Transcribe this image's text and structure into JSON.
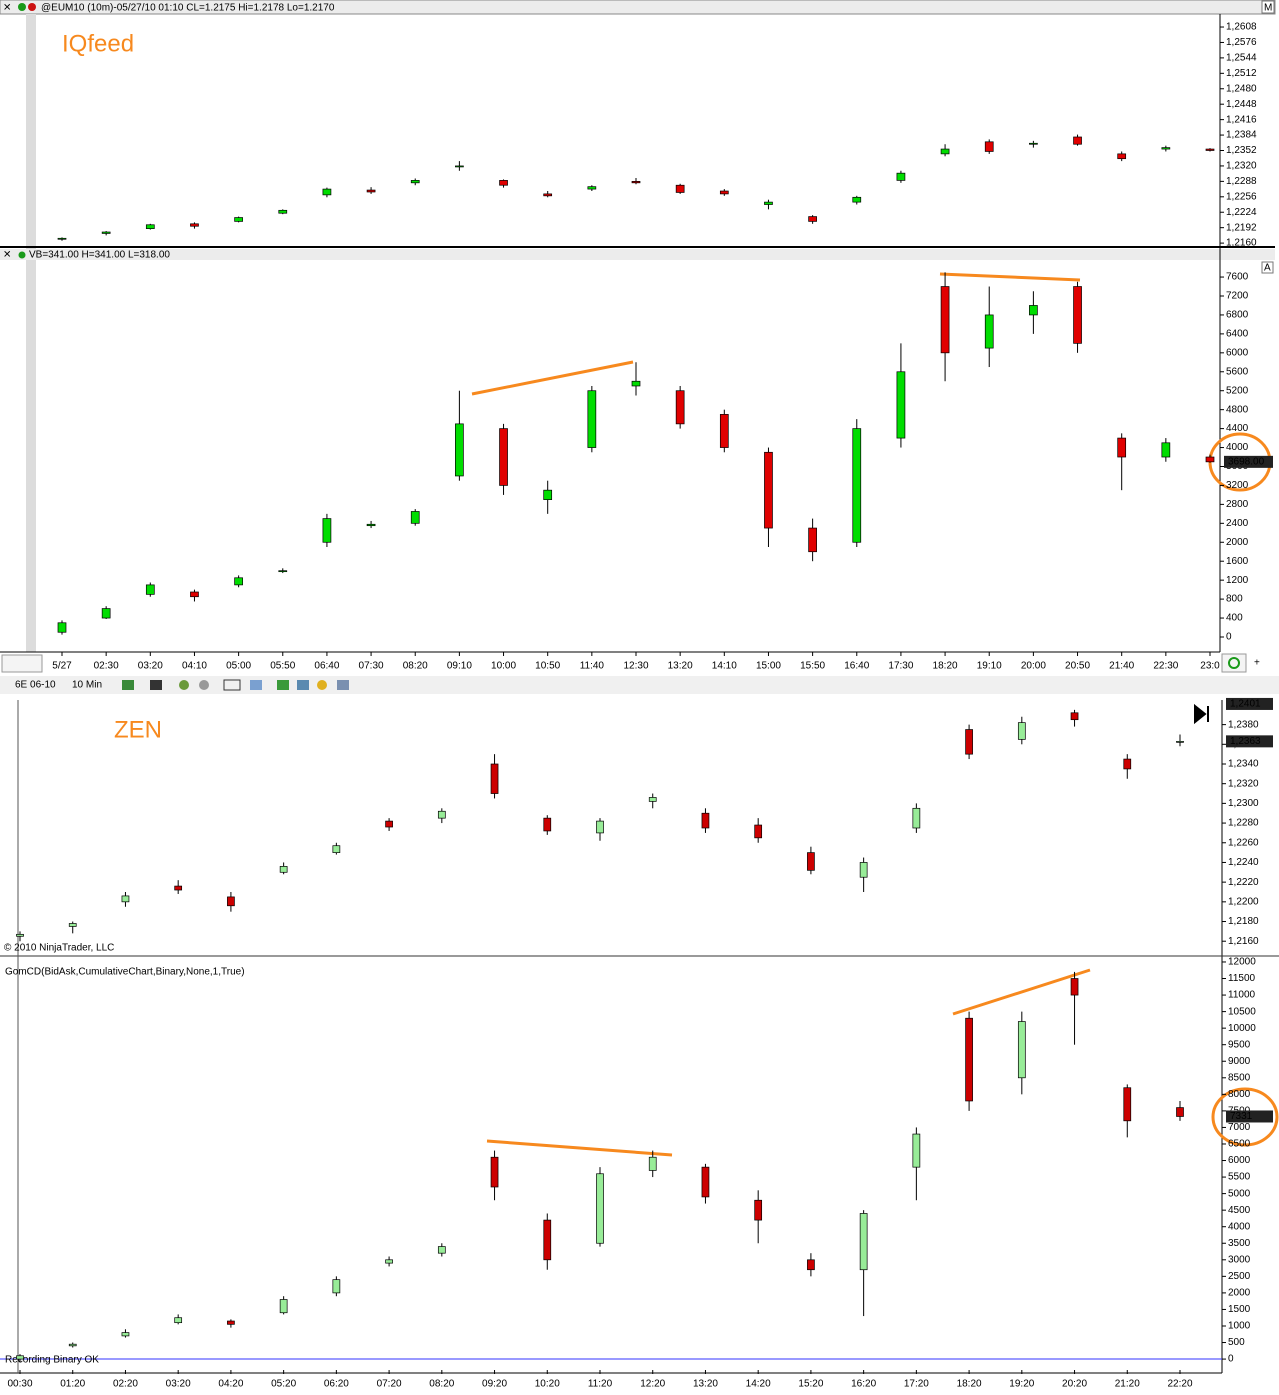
{
  "chart_data": [
    {
      "type": "candlestick",
      "title": "@EUM10 (10m)-05/27/10 01:10 CL=1.2175 Hi=1.2178 Lo=1.2170",
      "label": "IQfeed",
      "up_color": "#00dd00",
      "down_color": "#e00000",
      "open": [
        1.2168,
        1.218,
        1.219,
        1.22,
        1.2205,
        1.2222,
        1.226,
        1.227,
        1.2285,
        1.2318,
        1.229,
        1.2262,
        1.2272,
        1.2288,
        1.228,
        1.2268,
        1.224,
        1.2215,
        1.2245,
        1.229,
        1.2345,
        1.237,
        1.2365,
        1.238,
        1.2345,
        1.2355,
        1.2355
      ],
      "high": [
        1.2172,
        1.2185,
        1.22,
        1.2203,
        1.2215,
        1.223,
        1.2275,
        1.2276,
        1.2294,
        1.233,
        1.2292,
        1.2268,
        1.228,
        1.2295,
        1.2283,
        1.2272,
        1.225,
        1.2218,
        1.2258,
        1.231,
        1.2365,
        1.2375,
        1.2372,
        1.2385,
        1.235,
        1.2362,
        1.2357
      ],
      "low": [
        1.2165,
        1.2176,
        1.2188,
        1.219,
        1.2203,
        1.222,
        1.2255,
        1.2262,
        1.228,
        1.231,
        1.2275,
        1.2255,
        1.2268,
        1.2282,
        1.2262,
        1.2258,
        1.223,
        1.22,
        1.224,
        1.2285,
        1.234,
        1.2345,
        1.2358,
        1.2362,
        1.233,
        1.235,
        1.235
      ],
      "close": [
        1.217,
        1.2183,
        1.2198,
        1.2195,
        1.2213,
        1.2228,
        1.2272,
        1.2266,
        1.229,
        1.232,
        1.228,
        1.2258,
        1.2277,
        1.2285,
        1.2265,
        1.2262,
        1.2245,
        1.2205,
        1.2255,
        1.2305,
        1.2355,
        1.235,
        1.2367,
        1.2365,
        1.2335,
        1.2358,
        1.2352
      ],
      "ylim": [
        1.2154,
        1.2635
      ],
      "yticks": [
        {
          "value": 1.216,
          "label": "1,2160"
        },
        {
          "value": 1.2192,
          "label": "1,2192"
        },
        {
          "value": 1.2224,
          "label": "1,2224"
        },
        {
          "value": 1.2256,
          "label": "1,2256"
        },
        {
          "value": 1.2288,
          "label": "1,2288"
        },
        {
          "value": 1.232,
          "label": "1,2320"
        },
        {
          "value": 1.2352,
          "label": "1,2352"
        },
        {
          "value": 1.2384,
          "label": "1,2384"
        },
        {
          "value": 1.2416,
          "label": "1,2416"
        },
        {
          "value": 1.2448,
          "label": "1,2448"
        },
        {
          "value": 1.248,
          "label": "1,2480"
        },
        {
          "value": 1.2512,
          "label": "1,2512"
        },
        {
          "value": 1.2544,
          "label": "1,2544"
        },
        {
          "value": 1.2576,
          "label": "1,2576"
        },
        {
          "value": 1.2608,
          "label": "1,2608"
        }
      ]
    },
    {
      "type": "candlestick",
      "title": "VB=341.00 H=341.00 L=318.00",
      "up_color": "#00dd00",
      "down_color": "#e00000",
      "categories": [
        "5/27",
        "02:30",
        "03:20",
        "04:10",
        "05:00",
        "05:50",
        "06:40",
        "07:30",
        "08:20",
        "09:10",
        "10:00",
        "10:50",
        "11:40",
        "12:30",
        "13:20",
        "14:10",
        "15:00",
        "15:50",
        "16:40",
        "17:30",
        "18:20",
        "19:10",
        "20:00",
        "20:50",
        "21:40",
        "22:30",
        "23:0"
      ],
      "open": [
        100,
        400,
        900,
        950,
        1100,
        1380,
        2000,
        2350,
        2400,
        3400,
        4400,
        2900,
        4000,
        5300,
        5200,
        4700,
        3900,
        2300,
        2000,
        4200,
        7400,
        6100,
        6800,
        7400,
        4200,
        3800,
        3800
      ],
      "high": [
        350,
        650,
        1150,
        1000,
        1300,
        1450,
        2600,
        2450,
        2700,
        5200,
        4500,
        3300,
        5300,
        5800,
        5300,
        4800,
        4000,
        2500,
        4600,
        6200,
        7700,
        7400,
        7300,
        7500,
        4300,
        4200,
        3850
      ],
      "low": [
        50,
        380,
        850,
        750,
        1050,
        1350,
        1900,
        2300,
        2350,
        3300,
        3000,
        2600,
        3900,
        5100,
        4400,
        3900,
        1900,
        1600,
        1900,
        4000,
        5400,
        5700,
        6400,
        6000,
        3100,
        3700,
        3680
      ],
      "close": [
        300,
        600,
        1100,
        850,
        1250,
        1400,
        2500,
        2380,
        2650,
        4500,
        3200,
        3100,
        5200,
        5400,
        4500,
        4000,
        2300,
        1800,
        4400,
        5600,
        6000,
        6800,
        7000,
        6200,
        3800,
        4100,
        3698
      ],
      "markers": [
        {
          "value": 3698,
          "label": "3698.00"
        }
      ],
      "ylim": [
        -317,
        7960
      ],
      "yticks": [
        0,
        400,
        800,
        1200,
        1600,
        2000,
        2400,
        2800,
        3200,
        3600,
        4000,
        4400,
        4800,
        5200,
        5600,
        6000,
        6400,
        6800,
        7200,
        7600
      ]
    },
    {
      "type": "candlestick",
      "label": "ZEN",
      "up_color": "#98ec98",
      "down_color": "#cc0000",
      "open": [
        1.2165,
        1.2175,
        1.22,
        1.2216,
        1.2205,
        1.223,
        1.225,
        1.2282,
        1.2285,
        1.234,
        1.2285,
        1.227,
        1.2302,
        1.229,
        1.2278,
        1.225,
        1.2225,
        1.2275,
        1.2375,
        1.2365,
        1.2392,
        1.2345,
        1.2362
      ],
      "high": [
        1.217,
        1.218,
        1.221,
        1.2222,
        1.221,
        1.224,
        1.226,
        1.2285,
        1.2295,
        1.235,
        1.2288,
        1.2285,
        1.231,
        1.2295,
        1.2285,
        1.2256,
        1.2245,
        1.23,
        1.238,
        1.2388,
        1.2395,
        1.235,
        1.237
      ],
      "low": [
        1.216,
        1.2168,
        1.2195,
        1.2208,
        1.219,
        1.2228,
        1.2248,
        1.2272,
        1.228,
        1.2305,
        1.2268,
        1.2262,
        1.2295,
        1.227,
        1.226,
        1.2228,
        1.221,
        1.227,
        1.2345,
        1.236,
        1.2378,
        1.2325,
        1.2358
      ],
      "close": [
        1.2167,
        1.2178,
        1.2206,
        1.2212,
        1.2196,
        1.2236,
        1.2257,
        1.2276,
        1.2292,
        1.231,
        1.2272,
        1.2282,
        1.2306,
        1.2275,
        1.2265,
        1.2232,
        1.224,
        1.2295,
        1.235,
        1.2382,
        1.2385,
        1.2335,
        1.2363
      ],
      "markers": [
        {
          "value": 1.2401,
          "label": "1,2401"
        },
        {
          "value": 1.2363,
          "label": "1,2363"
        }
      ],
      "ylim": [
        1.2146,
        1.2405
      ],
      "yticks": [
        {
          "value": 1.216,
          "label": "1,2160"
        },
        {
          "value": 1.218,
          "label": "1,2180"
        },
        {
          "value": 1.22,
          "label": "1,2200"
        },
        {
          "value": 1.222,
          "label": "1,2220"
        },
        {
          "value": 1.224,
          "label": "1,2240"
        },
        {
          "value": 1.226,
          "label": "1,2260"
        },
        {
          "value": 1.228,
          "label": "1,2280"
        },
        {
          "value": 1.23,
          "label": "1,2300"
        },
        {
          "value": 1.232,
          "label": "1,2320"
        },
        {
          "value": 1.234,
          "label": "1,2340"
        },
        {
          "value": 1.236,
          "label": "1,2360"
        },
        {
          "value": 1.238,
          "label": "1,2380"
        }
      ]
    },
    {
      "type": "candlestick",
      "title": "GomCD(BidAsk,CumulativeChart,Binary,None,1,True)",
      "up_color": "#98ec98",
      "down_color": "#cc0000",
      "categories": [
        "00:30",
        "01:20",
        "02:20",
        "03:20",
        "04:20",
        "05:20",
        "06:20",
        "07:20",
        "08:20",
        "09:20",
        "10:20",
        "11:20",
        "12:20",
        "13:20",
        "14:20",
        "15:20",
        "16:20",
        "17:20",
        "18:20",
        "19:20",
        "20:20",
        "21:20",
        "22:20"
      ],
      "open": [
        0,
        400,
        700,
        1100,
        1150,
        1400,
        2000,
        2900,
        3200,
        6100,
        4200,
        3500,
        5700,
        5800,
        4800,
        3000,
        2700,
        5800,
        10300,
        8500,
        11500,
        8200,
        7600
      ],
      "high": [
        150,
        500,
        900,
        1350,
        1200,
        1900,
        2500,
        3100,
        3500,
        6300,
        4400,
        5800,
        6300,
        5900,
        5100,
        3200,
        4500,
        7000,
        10500,
        10500,
        11700,
        8300,
        7800
      ],
      "low": [
        -100,
        350,
        650,
        1050,
        950,
        1350,
        1900,
        2800,
        3100,
        4800,
        2700,
        3400,
        5500,
        4700,
        3500,
        2500,
        1300,
        4800,
        7500,
        8000,
        9500,
        6700,
        7200
      ],
      "close": [
        100,
        450,
        800,
        1250,
        1050,
        1800,
        2400,
        3000,
        3400,
        5200,
        3000,
        5600,
        6100,
        4900,
        4200,
        2700,
        4400,
        6800,
        7800,
        10200,
        11000,
        7200,
        7331
      ],
      "markers": [
        {
          "value": 7331,
          "label": "7331"
        }
      ],
      "ylim": [
        -330,
        12120
      ],
      "yticks": [
        0,
        500,
        1000,
        1500,
        2000,
        2500,
        3000,
        3500,
        4000,
        4500,
        5000,
        5500,
        6000,
        6500,
        7000,
        7500,
        8000,
        8500,
        9000,
        9500,
        10000,
        10500,
        11000,
        11500,
        12000
      ]
    }
  ],
  "toolbar": {
    "instrument": "6E 06-10",
    "period": "10 Min"
  },
  "copyright": "© 2010 NinjaTrader, LLC",
  "status": "Recording Binary OK"
}
